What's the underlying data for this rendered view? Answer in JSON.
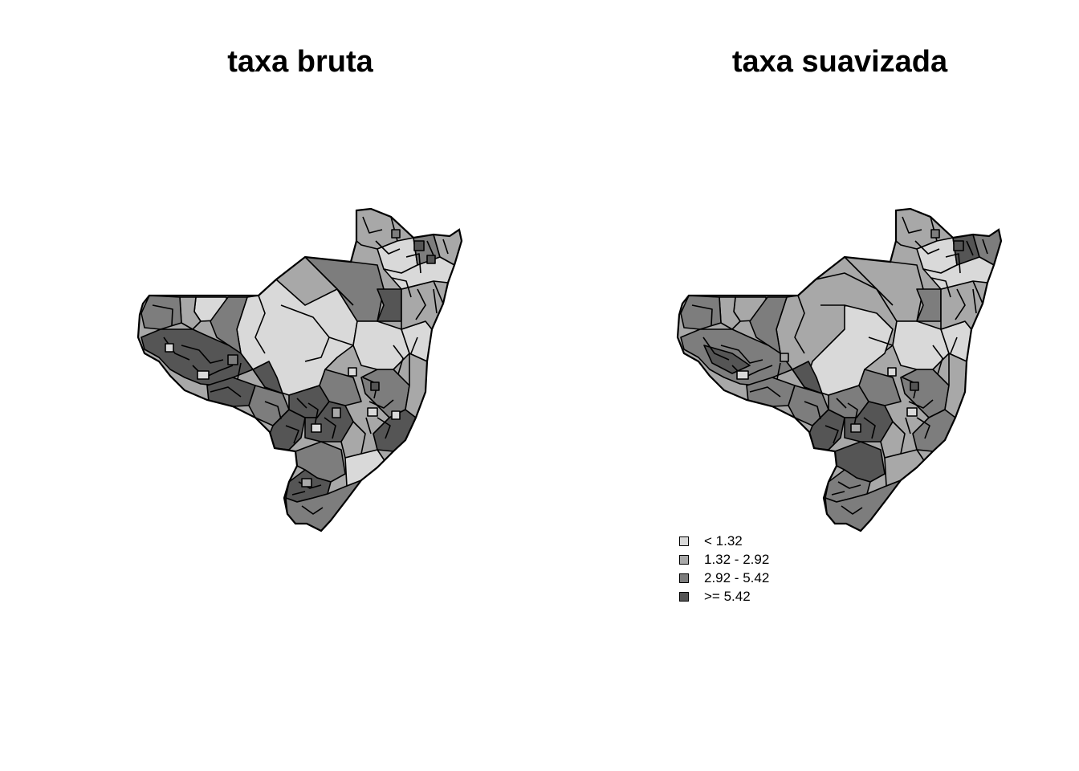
{
  "maps": [
    {
      "title": "taxa bruta"
    },
    {
      "title": "taxa suavizada"
    }
  ],
  "legend": {
    "items": [
      {
        "label": "< 1.32",
        "color": "#d9d9d9"
      },
      {
        "label": "1.32 - 2.92",
        "color": "#a8a8a8"
      },
      {
        "label": "2.92 - 5.42",
        "color": "#7d7d7d"
      },
      {
        "label": ">= 5.42",
        "color": "#555555"
      }
    ]
  }
}
